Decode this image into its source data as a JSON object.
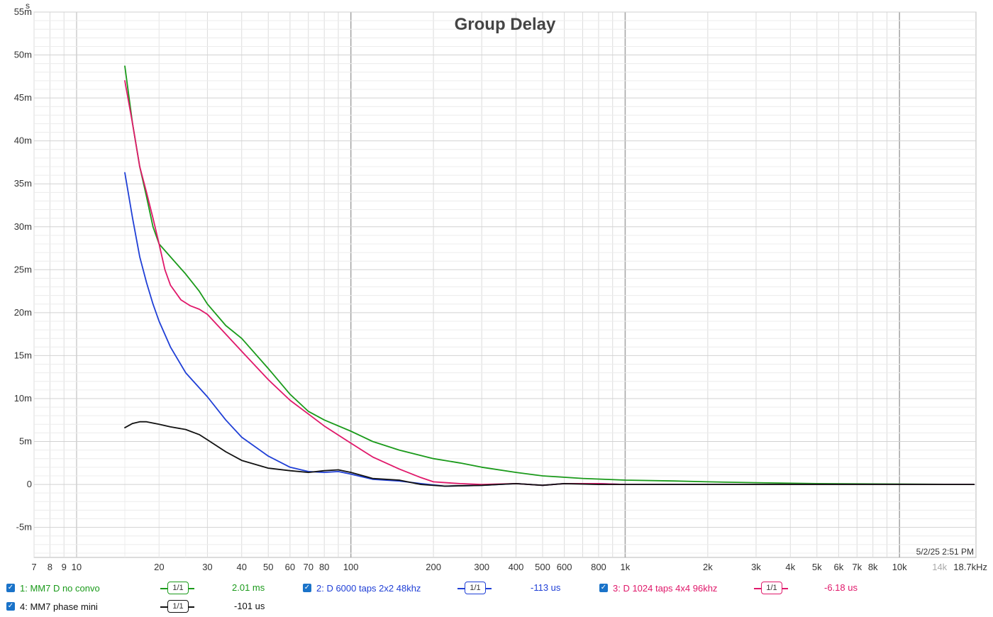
{
  "chart_data": {
    "type": "line",
    "title": "Group Delay",
    "yunit": "s",
    "xscale": "log",
    "xlim": [
      7,
      19000
    ],
    "ylim": [
      -0.0085,
      0.055
    ],
    "yticks": [
      {
        "v": 0.055,
        "label": "55m"
      },
      {
        "v": 0.05,
        "label": "50m"
      },
      {
        "v": 0.045,
        "label": "45m"
      },
      {
        "v": 0.04,
        "label": "40m"
      },
      {
        "v": 0.035,
        "label": "35m"
      },
      {
        "v": 0.03,
        "label": "30m"
      },
      {
        "v": 0.025,
        "label": "25m"
      },
      {
        "v": 0.02,
        "label": "20m"
      },
      {
        "v": 0.015,
        "label": "15m"
      },
      {
        "v": 0.01,
        "label": "10m"
      },
      {
        "v": 0.005,
        "label": "5m"
      },
      {
        "v": 0,
        "label": "0"
      },
      {
        "v": -0.005,
        "label": "-5m"
      }
    ],
    "xticks": [
      {
        "v": 7,
        "label": "7"
      },
      {
        "v": 8,
        "label": "8"
      },
      {
        "v": 9,
        "label": "9"
      },
      {
        "v": 10,
        "label": "10"
      },
      {
        "v": 20,
        "label": "20"
      },
      {
        "v": 30,
        "label": "30"
      },
      {
        "v": 40,
        "label": "40"
      },
      {
        "v": 50,
        "label": "50"
      },
      {
        "v": 60,
        "label": "60"
      },
      {
        "v": 70,
        "label": "70"
      },
      {
        "v": 80,
        "label": "80"
      },
      {
        "v": 100,
        "label": "100"
      },
      {
        "v": 200,
        "label": "200"
      },
      {
        "v": 300,
        "label": "300"
      },
      {
        "v": 400,
        "label": "400"
      },
      {
        "v": 500,
        "label": "500"
      },
      {
        "v": 600,
        "label": "600"
      },
      {
        "v": 800,
        "label": "800"
      },
      {
        "v": 1000,
        "label": "1k"
      },
      {
        "v": 2000,
        "label": "2k"
      },
      {
        "v": 3000,
        "label": "3k"
      },
      {
        "v": 4000,
        "label": "4k"
      },
      {
        "v": 5000,
        "label": "5k"
      },
      {
        "v": 6000,
        "label": "6k"
      },
      {
        "v": 7000,
        "label": "7k"
      },
      {
        "v": 8000,
        "label": "8k"
      },
      {
        "v": 10000,
        "label": "10k"
      },
      {
        "v": 14000,
        "label": "14k",
        "muted": true
      },
      {
        "v": 18700,
        "label": "18.7kHz"
      }
    ],
    "timestamp": "5/2/25 2:51 PM",
    "series": [
      {
        "name": "1: MM7 D no convo",
        "color": "#1a9a1a",
        "value": "2.01 ms",
        "x": [
          15,
          16,
          17,
          18,
          19,
          20,
          22,
          25,
          28,
          30,
          35,
          40,
          50,
          60,
          70,
          80,
          100,
          120,
          150,
          200,
          250,
          300,
          400,
          500,
          700,
          1000,
          1500,
          2000,
          3000,
          5000,
          10000,
          18700
        ],
        "y": [
          0.0487,
          0.042,
          0.037,
          0.0335,
          0.03,
          0.028,
          0.0265,
          0.0245,
          0.0225,
          0.021,
          0.0185,
          0.017,
          0.0135,
          0.0105,
          0.0085,
          0.0075,
          0.0062,
          0.005,
          0.004,
          0.003,
          0.0025,
          0.002,
          0.0014,
          0.001,
          0.0007,
          0.0005,
          0.0004,
          0.0003,
          0.0002,
          0.0001,
          5e-05,
          0
        ]
      },
      {
        "name": "2: D 6000 taps 2x2 48khz",
        "color": "#1f3fd6",
        "value": "-113 us",
        "x": [
          15,
          16,
          17,
          18,
          19,
          20,
          22,
          25,
          30,
          35,
          40,
          50,
          60,
          70,
          80,
          90,
          100,
          120,
          150,
          180,
          220,
          300,
          400,
          500,
          600,
          800,
          1000,
          2000,
          5000,
          18700
        ],
        "y": [
          0.0363,
          0.031,
          0.0265,
          0.0235,
          0.021,
          0.019,
          0.016,
          0.013,
          0.0102,
          0.0075,
          0.0055,
          0.0033,
          0.002,
          0.0015,
          0.0014,
          0.0015,
          0.0012,
          0.0006,
          0.0004,
          0.0001,
          -0.0002,
          -0.0001,
          0.0001,
          -0.0001,
          0.0001,
          0.0001,
          0,
          0,
          0,
          0
        ]
      },
      {
        "name": "3: D 1024 taps 4x4 96khz",
        "color": "#e0186a",
        "value": "-6.18 us",
        "x": [
          15,
          16,
          17,
          18,
          19,
          20,
          21,
          22,
          24,
          26,
          28,
          30,
          35,
          40,
          50,
          60,
          70,
          80,
          100,
          120,
          150,
          180,
          200,
          250,
          300,
          400,
          500,
          600,
          800,
          1000,
          18700
        ],
        "y": [
          0.047,
          0.042,
          0.037,
          0.034,
          0.031,
          0.028,
          0.025,
          0.0232,
          0.0215,
          0.0208,
          0.0204,
          0.0198,
          0.0175,
          0.0155,
          0.0122,
          0.0098,
          0.0082,
          0.0068,
          0.0048,
          0.0032,
          0.0018,
          0.0008,
          0.0003,
          0.0001,
          0,
          0.0001,
          -0.0001,
          0.0001,
          0.0001,
          0,
          0
        ]
      },
      {
        "name": "4: MM7 phase mini",
        "color": "#111111",
        "value": "-101 us",
        "x": [
          15,
          16,
          17,
          18,
          20,
          22,
          25,
          28,
          30,
          35,
          40,
          50,
          60,
          70,
          80,
          90,
          100,
          120,
          150,
          180,
          220,
          300,
          400,
          500,
          600,
          800,
          1000,
          18700
        ],
        "y": [
          0.0066,
          0.0071,
          0.0073,
          0.0073,
          0.007,
          0.0067,
          0.0064,
          0.0058,
          0.0052,
          0.0038,
          0.0028,
          0.0019,
          0.0016,
          0.0014,
          0.0016,
          0.0017,
          0.0014,
          0.0007,
          0.0005,
          0,
          -0.0002,
          -0.0001,
          0.0001,
          -0.0001,
          0.0001,
          0,
          0,
          0
        ]
      }
    ]
  },
  "legend": {
    "smoothing_label": "1/1"
  }
}
